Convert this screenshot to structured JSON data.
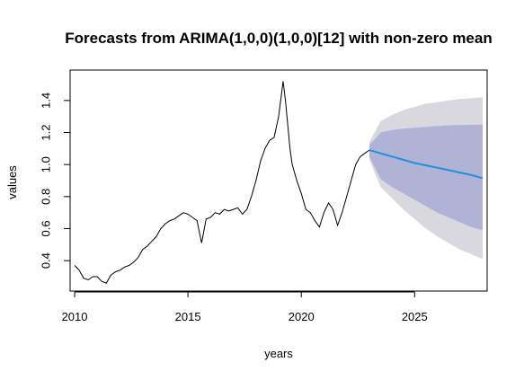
{
  "chart_data": {
    "type": "line",
    "title": "Forecasts from ARIMA(1,0,0)(1,0,0)[12] with non-zero mean",
    "xlabel": "years",
    "ylabel": "values",
    "xlim": [
      2009.8,
      2028.2
    ],
    "ylim": [
      0.21,
      1.59
    ],
    "x_ticks": [
      2010,
      2015,
      2020,
      2025
    ],
    "x_tick_labels": [
      "2010",
      "2015",
      "2020",
      "2025"
    ],
    "y_ticks": [
      0.4,
      0.6,
      0.8,
      1.0,
      1.2,
      1.4
    ],
    "y_tick_labels": [
      "0.4",
      "0.6",
      "0.8",
      "1.0",
      "1.2",
      "1.4"
    ],
    "grid": false,
    "legend": "none",
    "colors": {
      "history": "#000000",
      "forecast": "#1f8fe0",
      "band80": "#b0b3d6",
      "band95": "#d9d8de"
    },
    "history": {
      "x": [
        2010.0,
        2010.2,
        2010.4,
        2010.6,
        2010.8,
        2011.0,
        2011.2,
        2011.4,
        2011.6,
        2011.8,
        2012.0,
        2012.2,
        2012.4,
        2012.6,
        2012.8,
        2013.0,
        2013.2,
        2013.4,
        2013.6,
        2013.8,
        2014.0,
        2014.2,
        2014.4,
        2014.6,
        2014.8,
        2015.0,
        2015.2,
        2015.4,
        2015.6,
        2015.8,
        2016.0,
        2016.2,
        2016.4,
        2016.6,
        2016.8,
        2017.0,
        2017.2,
        2017.4,
        2017.6,
        2017.8,
        2018.0,
        2018.2,
        2018.4,
        2018.6,
        2018.8,
        2019.0,
        2019.2,
        2019.3,
        2019.4,
        2019.5,
        2019.6,
        2019.8,
        2020.0,
        2020.2,
        2020.4,
        2020.6,
        2020.8,
        2021.0,
        2021.2,
        2021.4,
        2021.6,
        2021.8,
        2022.0,
        2022.2,
        2022.4,
        2022.6,
        2022.8,
        2023.0
      ],
      "y": [
        0.37,
        0.34,
        0.29,
        0.28,
        0.3,
        0.3,
        0.27,
        0.26,
        0.31,
        0.33,
        0.34,
        0.36,
        0.37,
        0.39,
        0.42,
        0.47,
        0.49,
        0.52,
        0.55,
        0.6,
        0.63,
        0.65,
        0.66,
        0.68,
        0.7,
        0.69,
        0.67,
        0.65,
        0.51,
        0.66,
        0.67,
        0.7,
        0.69,
        0.72,
        0.71,
        0.72,
        0.73,
        0.69,
        0.72,
        0.8,
        0.9,
        1.02,
        1.1,
        1.15,
        1.17,
        1.3,
        1.52,
        1.4,
        1.25,
        1.1,
        1.0,
        0.9,
        0.82,
        0.72,
        0.7,
        0.65,
        0.61,
        0.7,
        0.76,
        0.72,
        0.62,
        0.7,
        0.8,
        0.9,
        1.0,
        1.05,
        1.07,
        1.09
      ]
    },
    "forecast": {
      "x": [
        2023.0,
        2023.5,
        2024.0,
        2024.5,
        2025.0,
        2025.5,
        2026.0,
        2026.5,
        2027.0,
        2027.5,
        2028.0
      ],
      "mean": [
        1.09,
        1.07,
        1.05,
        1.03,
        1.01,
        0.995,
        0.98,
        0.965,
        0.95,
        0.935,
        0.915
      ],
      "lo80": [
        1.05,
        0.91,
        0.86,
        0.82,
        0.78,
        0.74,
        0.7,
        0.67,
        0.64,
        0.61,
        0.59
      ],
      "hi80": [
        1.12,
        1.2,
        1.215,
        1.225,
        1.23,
        1.235,
        1.24,
        1.245,
        1.247,
        1.248,
        1.25
      ],
      "lo95": [
        1.03,
        0.86,
        0.79,
        0.72,
        0.66,
        0.6,
        0.55,
        0.51,
        0.47,
        0.44,
        0.41
      ],
      "hi95": [
        1.14,
        1.27,
        1.31,
        1.34,
        1.36,
        1.38,
        1.39,
        1.4,
        1.41,
        1.415,
        1.42
      ]
    }
  }
}
